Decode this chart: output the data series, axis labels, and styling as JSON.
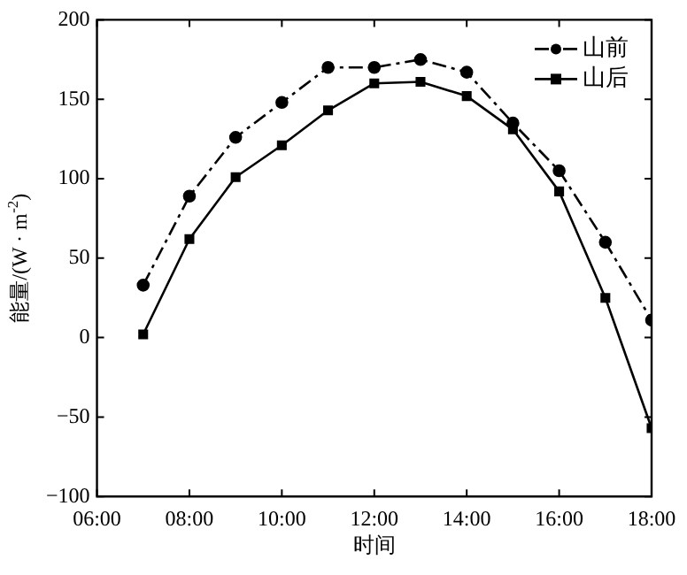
{
  "chart_data": {
    "type": "line",
    "xlabel": "时间",
    "ylabel": "能量/(W · m$^{-2}$)",
    "x": [
      7,
      8,
      9,
      10,
      11,
      12,
      13,
      14,
      15,
      16,
      17,
      18
    ],
    "xlim": [
      6,
      18
    ],
    "xticks": [
      {
        "value": 6,
        "label": "06:00"
      },
      {
        "value": 8,
        "label": "08:00"
      },
      {
        "value": 10,
        "label": "10:00"
      },
      {
        "value": 12,
        "label": "12:00"
      },
      {
        "value": 14,
        "label": "14:00"
      },
      {
        "value": 16,
        "label": "16:00"
      },
      {
        "value": 18,
        "label": "18:00"
      }
    ],
    "ylim": [
      -100,
      200
    ],
    "yticks": [
      -100,
      -50,
      0,
      50,
      100,
      150,
      200
    ],
    "grid": false,
    "legend": "top right",
    "series": [
      {
        "name": "山前",
        "color": "#000000",
        "marker": "circle",
        "line_style": "dashdot",
        "values": [
          33,
          89,
          126,
          148,
          170,
          170,
          175,
          167,
          135,
          105,
          60,
          11
        ]
      },
      {
        "name": "山后",
        "color": "#000000",
        "marker": "square",
        "line_style": "solid",
        "values": [
          2,
          62,
          101,
          121,
          143,
          160,
          161,
          152,
          131,
          92,
          25,
          -57
        ]
      }
    ]
  }
}
